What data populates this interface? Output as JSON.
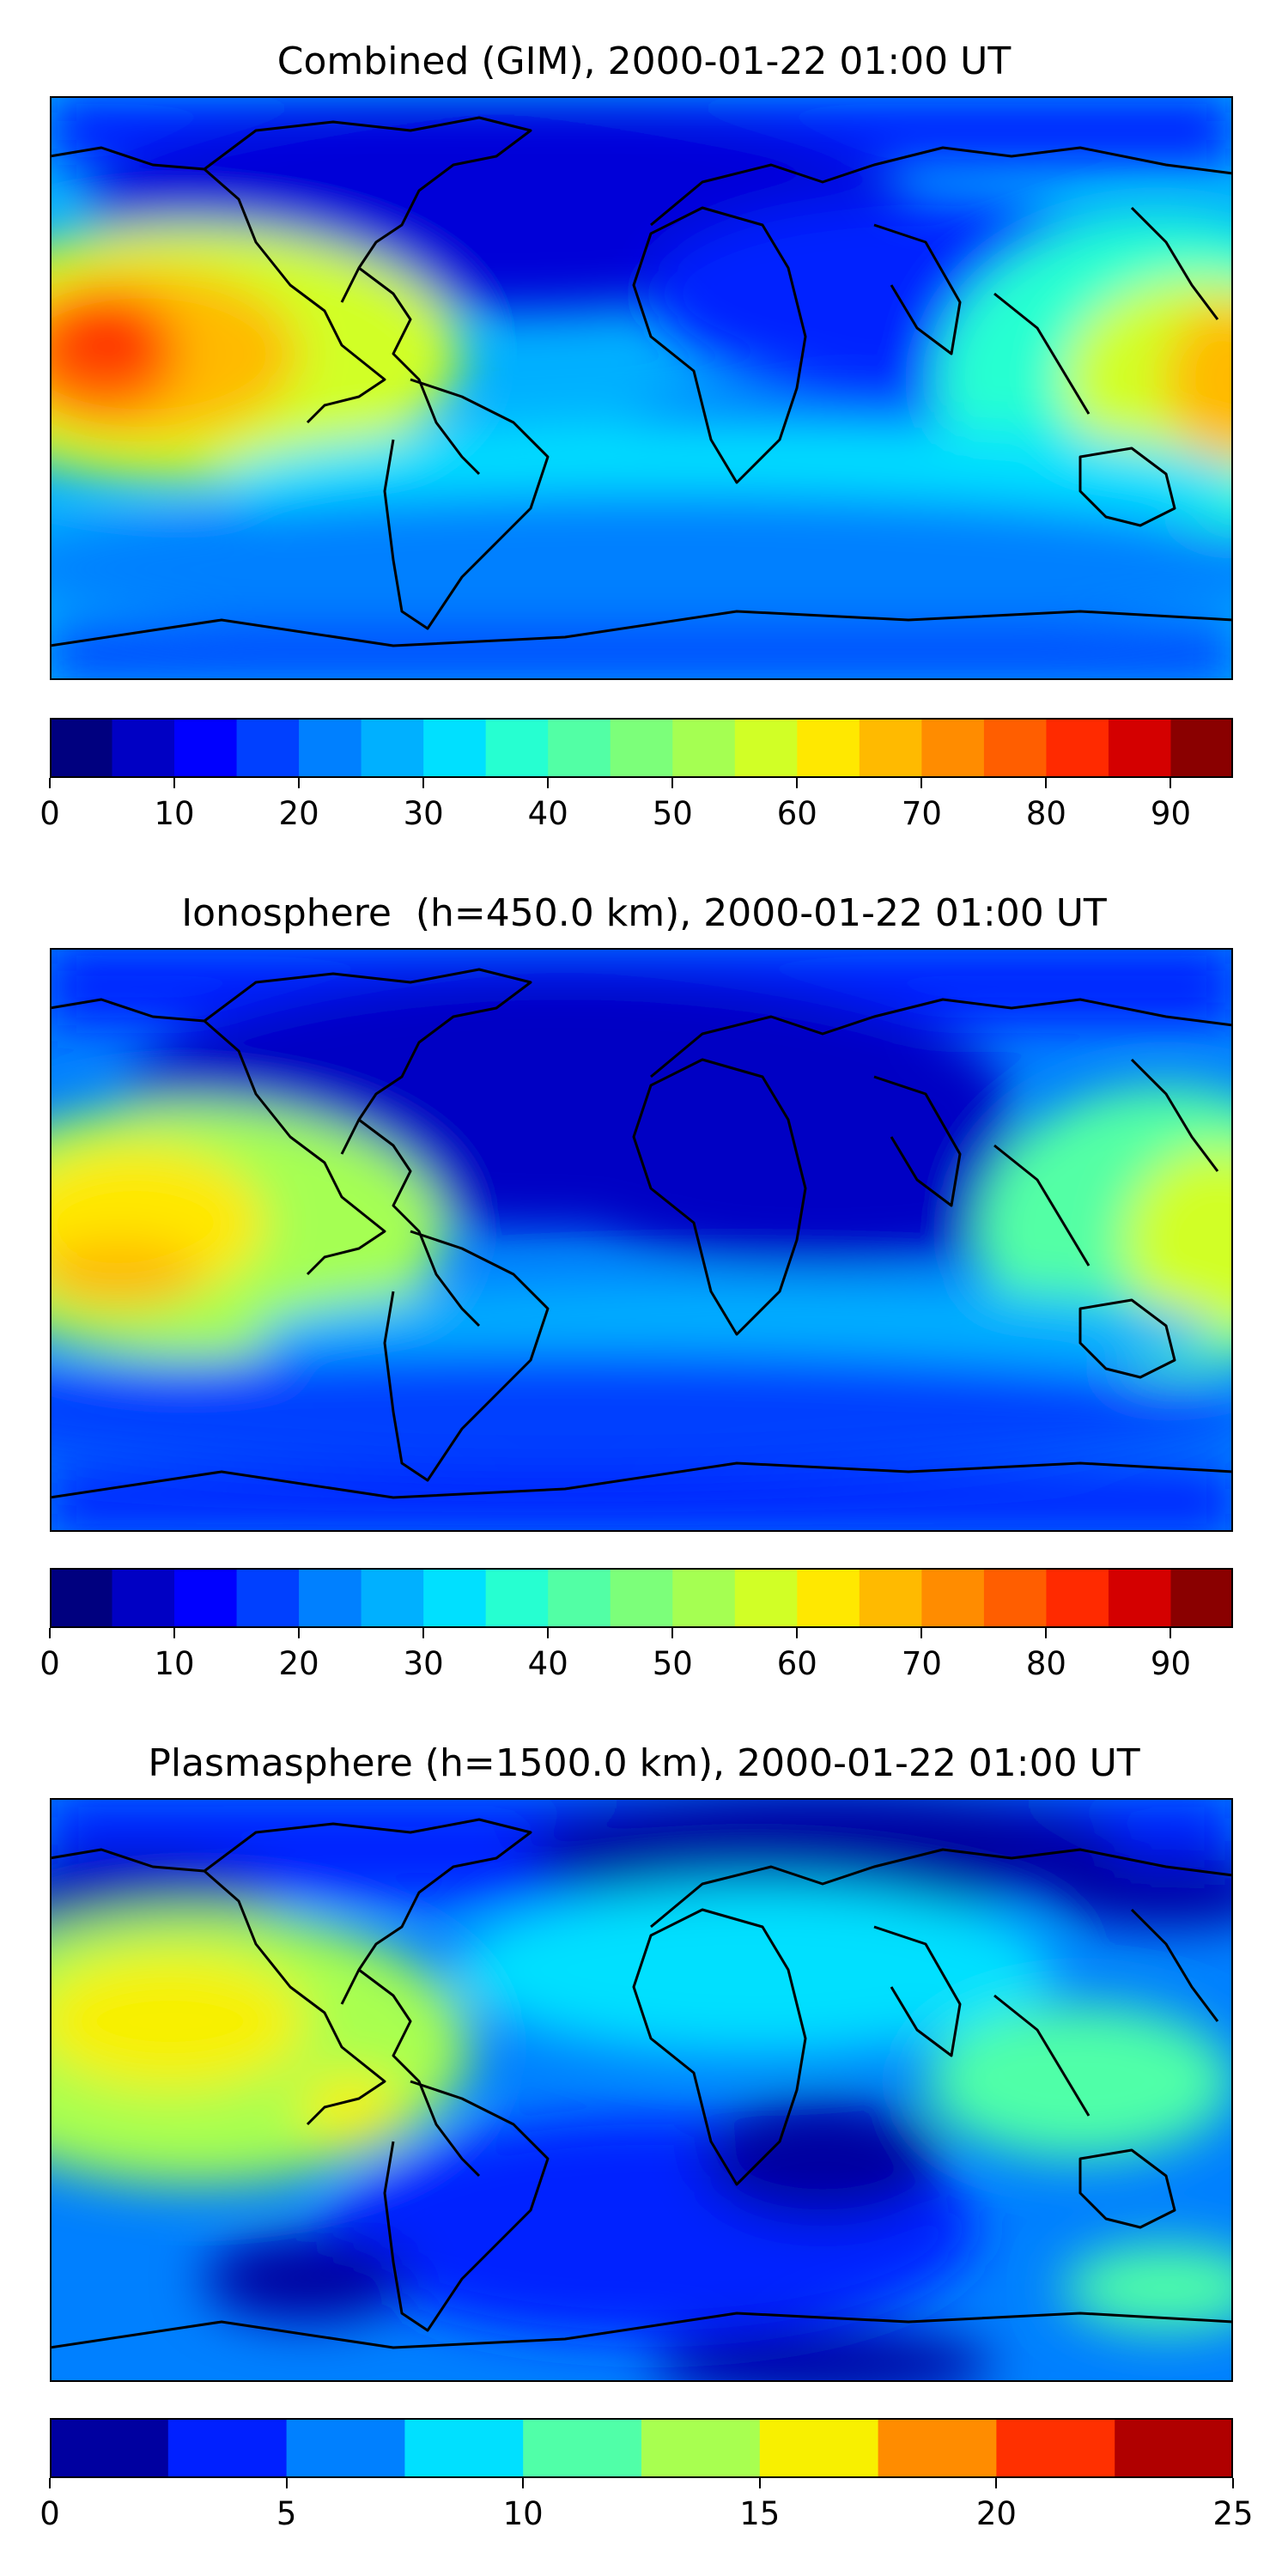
{
  "panels": [
    {
      "title": "Combined (GIM), 2000-01-22 01:00 UT",
      "colorbar": {
        "ticks": [
          "0",
          "10",
          "20",
          "30",
          "40",
          "50",
          "60",
          "70",
          "80",
          "90"
        ],
        "tick_values": [
          0,
          10,
          20,
          30,
          40,
          50,
          60,
          70,
          80,
          90
        ],
        "range": [
          0,
          95
        ],
        "levels": 19,
        "colors": [
          "#00007f",
          "#0000c4",
          "#0000ff",
          "#0040ff",
          "#0080ff",
          "#00b0ff",
          "#00e0ff",
          "#26ffd1",
          "#52ffa5",
          "#7cff7a",
          "#a5ff52",
          "#d1ff26",
          "#ffe800",
          "#ffba00",
          "#ff8c00",
          "#ff5e00",
          "#ff2a00",
          "#d40000",
          "#8a0000"
        ]
      }
    },
    {
      "title": "Ionosphere  (h=450.0 km), 2000-01-22 01:00 UT",
      "colorbar": {
        "ticks": [
          "0",
          "10",
          "20",
          "30",
          "40",
          "50",
          "60",
          "70",
          "80",
          "90"
        ],
        "tick_values": [
          0,
          10,
          20,
          30,
          40,
          50,
          60,
          70,
          80,
          90
        ],
        "range": [
          0,
          95
        ],
        "levels": 19,
        "colors": [
          "#00007f",
          "#0000c4",
          "#0000ff",
          "#0040ff",
          "#0080ff",
          "#00b0ff",
          "#00e0ff",
          "#26ffd1",
          "#52ffa5",
          "#7cff7a",
          "#a5ff52",
          "#d1ff26",
          "#ffe800",
          "#ffba00",
          "#ff8c00",
          "#ff5e00",
          "#ff2a00",
          "#d40000",
          "#8a0000"
        ]
      }
    },
    {
      "title": "Plasmasphere (h=1500.0 km), 2000-01-22 01:00 UT",
      "colorbar": {
        "ticks": [
          "0",
          "5",
          "10",
          "15",
          "20",
          "25"
        ],
        "tick_values": [
          0,
          5,
          10,
          15,
          20,
          25
        ],
        "range": [
          0,
          25
        ],
        "levels": 10,
        "colors": [
          "#0000a0",
          "#0020ff",
          "#0080ff",
          "#00e0ff",
          "#50ffa8",
          "#a8ff50",
          "#f8f000",
          "#ff8c00",
          "#ff3000",
          "#b00000"
        ]
      }
    }
  ]
}
